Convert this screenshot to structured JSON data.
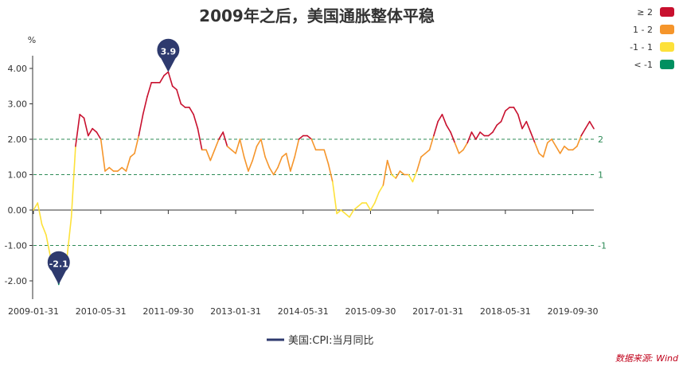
{
  "chart_data": {
    "type": "line",
    "title": "2009年之后，美国通胀整体平稳",
    "y_unit": "%",
    "ylim": [
      -2.5,
      4.5
    ],
    "y_ticks": [
      "4.00",
      "3.00",
      "2.00",
      "1.00",
      "0.00",
      "-1.00",
      "-2.00"
    ],
    "x_ticks": [
      "2009-01-31",
      "2010-05-31",
      "2011-09-30",
      "2013-01-31",
      "2014-05-31",
      "2015-09-30",
      "2017-01-31",
      "2018-05-31",
      "2019-09-30"
    ],
    "reference_lines": [
      {
        "value": 2,
        "label": "2"
      },
      {
        "value": 1,
        "label": "1"
      },
      {
        "value": -1,
        "label": "-1"
      }
    ],
    "color_ranges": [
      {
        "label": "≥ 2",
        "min": 2,
        "color": "#c8102e"
      },
      {
        "label": "1 - 2",
        "min": 1,
        "max": 2,
        "color": "#f5952b"
      },
      {
        "label": "-1 - 1",
        "min": -1,
        "max": 1,
        "color": "#fde13a"
      },
      {
        "label": "< -1",
        "max": -1,
        "color": "#009060"
      }
    ],
    "series": [
      {
        "name": "美国:CPI:当月同比",
        "start": "2009-01",
        "values": [
          0.0,
          0.2,
          -0.4,
          -0.7,
          -1.3,
          -1.4,
          -2.1,
          -1.5,
          -1.3,
          -0.2,
          1.8,
          2.7,
          2.6,
          2.1,
          2.3,
          2.2,
          2.0,
          1.1,
          1.2,
          1.1,
          1.1,
          1.2,
          1.1,
          1.5,
          1.6,
          2.1,
          2.7,
          3.2,
          3.6,
          3.6,
          3.6,
          3.8,
          3.9,
          3.5,
          3.4,
          3.0,
          2.9,
          2.9,
          2.7,
          2.3,
          1.7,
          1.7,
          1.4,
          1.7,
          2.0,
          2.2,
          1.8,
          1.7,
          1.6,
          2.0,
          1.5,
          1.1,
          1.4,
          1.8,
          2.0,
          1.5,
          1.2,
          1.0,
          1.2,
          1.5,
          1.6,
          1.1,
          1.5,
          2.0,
          2.1,
          2.1,
          2.0,
          1.7,
          1.7,
          1.7,
          1.3,
          0.8,
          -0.1,
          0.0,
          -0.1,
          -0.2,
          0.0,
          0.1,
          0.2,
          0.2,
          0.0,
          0.2,
          0.5,
          0.7,
          1.4,
          1.0,
          0.9,
          1.1,
          1.0,
          1.0,
          0.8,
          1.1,
          1.5,
          1.6,
          1.7,
          2.1,
          2.5,
          2.7,
          2.4,
          2.2,
          1.9,
          1.6,
          1.7,
          1.9,
          2.2,
          2.0,
          2.2,
          2.1,
          2.1,
          2.2,
          2.4,
          2.5,
          2.8,
          2.9,
          2.9,
          2.7,
          2.3,
          2.5,
          2.2,
          1.9,
          1.6,
          1.5,
          1.9,
          2.0,
          1.8,
          1.6,
          1.8,
          1.7,
          1.7,
          1.8,
          2.1,
          2.3,
          2.5,
          2.3
        ]
      }
    ],
    "annotations": [
      {
        "label": "3.9",
        "index": 32
      },
      {
        "label": "-2.1",
        "index": 6
      }
    ],
    "legend": {
      "position": "bottom"
    },
    "source": "数据来源: Wind"
  }
}
